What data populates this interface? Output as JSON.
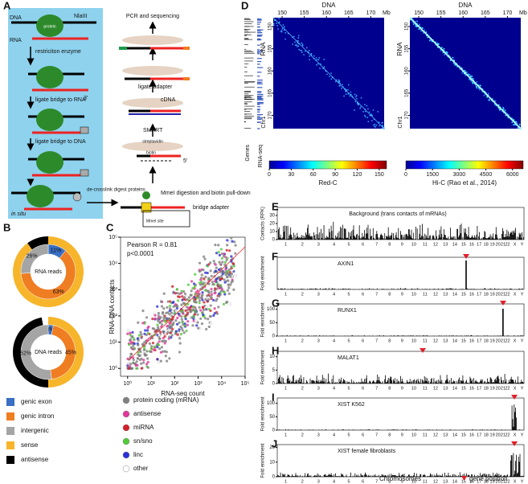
{
  "panel_labels": [
    "A",
    "B",
    "C",
    "D",
    "E",
    "F",
    "G",
    "H",
    "I",
    "J"
  ],
  "a": {
    "dna": "DNA",
    "nlaiii": "NlaIII",
    "protein": "protein",
    "rna": "RNA",
    "restriction": "restriciton enzyme",
    "three": "3'",
    "ligate_rna": "ligate bridge to RNA",
    "ligate_dna": "ligate bridge to DNA",
    "insitu": "in situ",
    "decrosslink": "de-crosslink digest proteins",
    "bridge": "bridge adapter",
    "mmei_site": "MmeI site",
    "biotin": "biotin",
    "mmei": "MmeI digestion and biotin pull-down",
    "streptavidin": "streptavidin",
    "five": "5'",
    "smart": "SMART",
    "cdna": "cDNA",
    "ligate_adapter": "ligate adapter",
    "pcr": "PCR and sequencing"
  },
  "b": {
    "donuts": [
      {
        "name": "RNA reads",
        "segments": [
          {
            "label": "11%",
            "value": 11
          },
          {
            "label": "63%",
            "value": 63
          },
          {
            "label": "26%",
            "value": 26
          }
        ]
      },
      {
        "name": "DNA reads",
        "segments": [
          {
            "label": "3%",
            "value": 3
          },
          {
            "label": "45%",
            "value": 45
          },
          {
            "label": "52%",
            "value": 52
          }
        ]
      }
    ],
    "legend": [
      {
        "name": "genic exon",
        "color": "#3a6fc4"
      },
      {
        "name": "genic intron",
        "color": "#ef7d22"
      },
      {
        "name": "intergenic",
        "color": "#a5a5a5"
      },
      {
        "name": "sense",
        "color": "#f7b52b"
      },
      {
        "name": "antisense",
        "color": "#000000"
      }
    ]
  },
  "c": {
    "stat1": "Pearson R = 0.81",
    "stat2": "p<0.0001",
    "xlabel": "RNA-seq count",
    "ylabel": "RNA-DNA contacts",
    "xticks": [
      {
        "value": 1,
        "label": "10⁰"
      },
      {
        "value": 10,
        "label": "10¹"
      },
      {
        "value": 100,
        "label": "10²"
      },
      {
        "value": 1000,
        "label": "10³"
      },
      {
        "value": 10000,
        "label": "10⁴"
      },
      {
        "value": 100000,
        "label": "10⁵"
      }
    ],
    "yticks": [
      {
        "value": 1,
        "label": "10⁰"
      },
      {
        "value": 10,
        "label": "10¹"
      },
      {
        "value": 100,
        "label": "10²"
      },
      {
        "value": 1000,
        "label": "10³"
      },
      {
        "value": 10000,
        "label": "10⁴"
      },
      {
        "value": 100000,
        "label": "10⁵"
      }
    ],
    "legend": [
      {
        "name": "protein coding (mRNA)",
        "color": "#808080"
      },
      {
        "name": "antisense",
        "color": "#e0379b"
      },
      {
        "name": "miRNA",
        "color": "#d3202a"
      },
      {
        "name": "sn/sno",
        "color": "#52c93a"
      },
      {
        "name": "linc",
        "color": "#2b2fd6"
      },
      {
        "name": "other",
        "color": "#ffffff"
      }
    ]
  },
  "d": {
    "xlabel": "DNA",
    "ylabel": "RNA",
    "unit": "Mb",
    "chr": "Chr1",
    "genes": "Genes",
    "rnaseq": "RNA-seq",
    "lim": [
      148,
      173
    ],
    "ticks": [
      150,
      155,
      160,
      165,
      170
    ],
    "bars": [
      {
        "label": "Red-C",
        "clim": [
          0,
          160
        ],
        "ticks": [
          0,
          30,
          60,
          90,
          120,
          150
        ]
      },
      {
        "label": "Hi-C (Rao et al., 2014)",
        "clim": [
          0,
          6600
        ],
        "ticks": [
          0,
          1500,
          3000,
          4500,
          6000
        ]
      }
    ]
  },
  "tracks": [
    {
      "title": "Background (trans contacts of mRNAs)",
      "ylabel": "Contacts (RPK)",
      "ylim": [
        0,
        40
      ],
      "yticks": [
        0,
        10,
        20,
        30
      ]
    },
    {
      "title": "AXIN1",
      "ylabel": "Fold enrichment"
    },
    {
      "title": "RUNX1",
      "ylabel": "Fold enrichment",
      "ylim": [
        0,
        120
      ],
      "yticks": [
        0,
        50,
        100
      ]
    },
    {
      "title": "MALAT1",
      "ylabel": "Fold enrichment",
      "ylim": [
        0,
        12
      ],
      "yticks": [
        0,
        5,
        10
      ]
    },
    {
      "title": "XIST K562",
      "ylabel": "Fold enrichment",
      "ylim": [
        0,
        120
      ],
      "yticks": [
        0,
        50,
        100
      ]
    },
    {
      "title": "XIST female fibroblasts",
      "ylabel": "Fold enrichment",
      "ylim": [
        0,
        22
      ],
      "yticks": [
        0,
        10,
        20
      ]
    }
  ],
  "chromosomes": [
    "1",
    "2",
    "3",
    "4",
    "5",
    "6",
    "7",
    "8",
    "9",
    "10",
    "11",
    "12",
    "13",
    "14",
    "15",
    "16",
    "17",
    "18",
    "19",
    "20",
    "21",
    "22",
    "X",
    "Y"
  ],
  "xlabel": "Chromosomes",
  "gene_position": "gene position"
}
